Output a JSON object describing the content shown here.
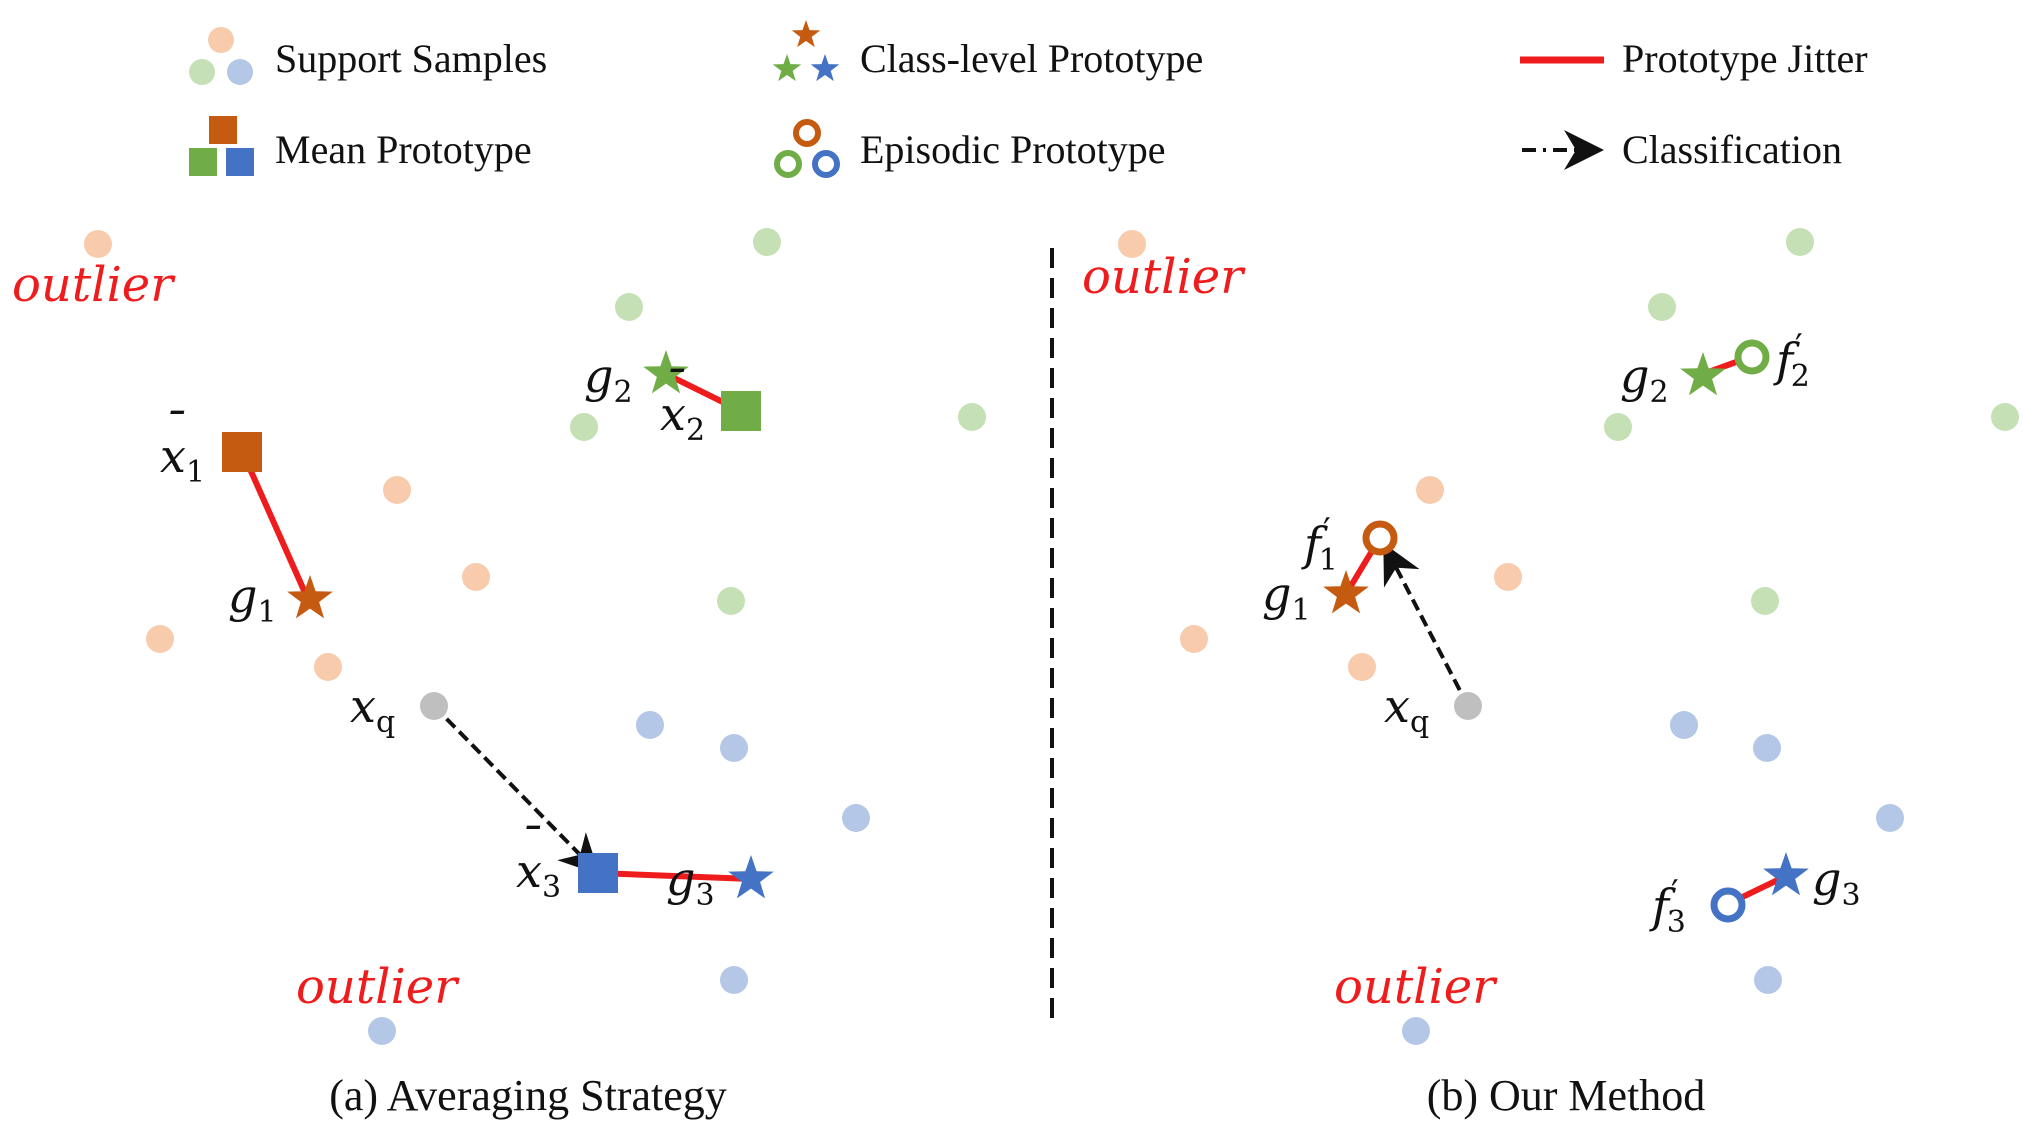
{
  "colors": {
    "orange": "#c55a11",
    "green": "#70ad47",
    "blue": "#4472c4",
    "orange_light": "#f8cbad",
    "green_light": "#c5e0b4",
    "blue_light": "#b4c7e7",
    "query": "#bfbfbf",
    "jitter": "#ee1c1c",
    "arrow": "#111111"
  },
  "legend": {
    "support": "Support Samples",
    "mean": "Mean Prototype",
    "class_level": "Class-level Prototype",
    "episodic": "Episodic Prototype",
    "jitter": "Prototype Jitter",
    "classification": "Classification"
  },
  "outlier_label": "outlier",
  "symbols": {
    "x": "x",
    "g": "g",
    "f": "f",
    "bar": "¯",
    "prime": "′",
    "one": "1",
    "two": "2",
    "three": "3",
    "q": "q"
  },
  "captions": {
    "a": "(a) Averaging Strategy",
    "b": "(b) Our Method"
  }
}
